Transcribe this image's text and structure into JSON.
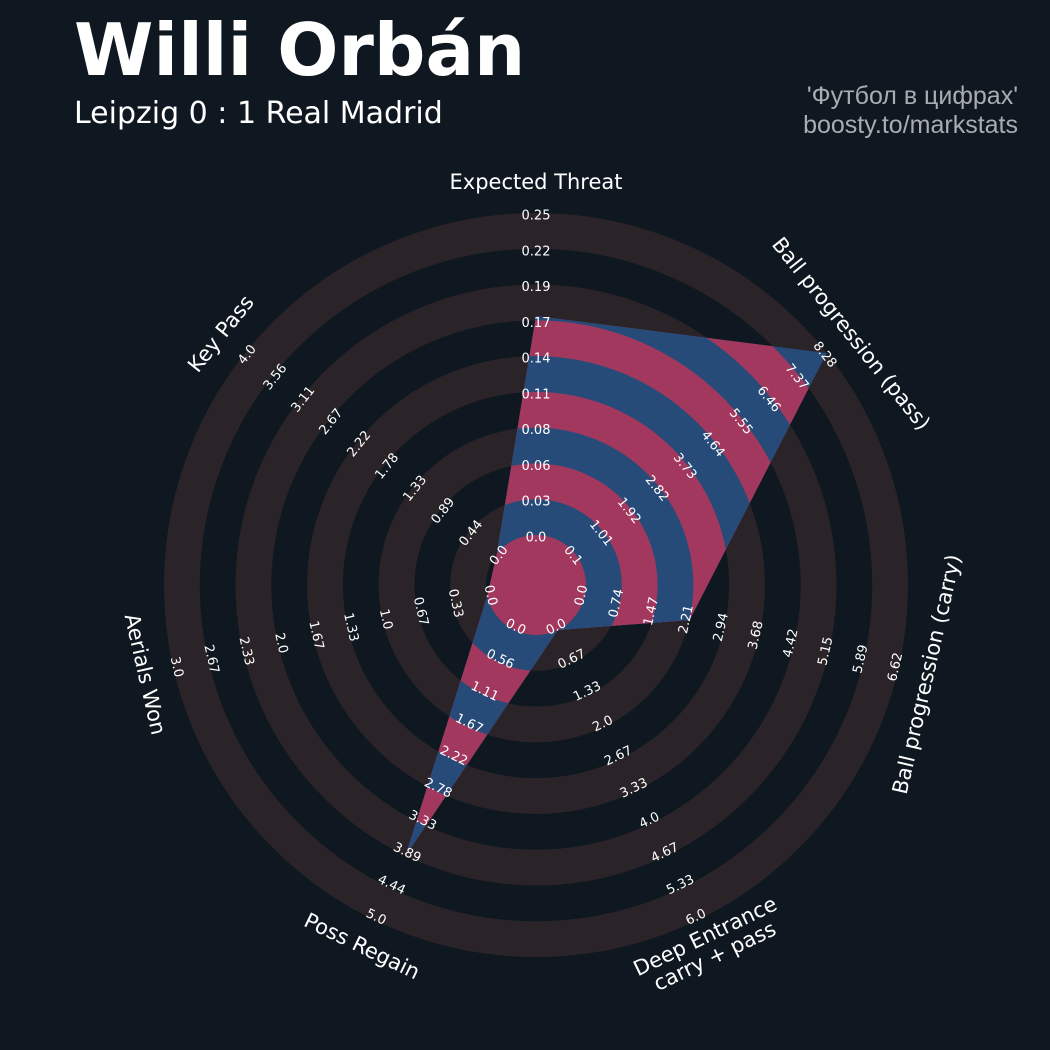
{
  "header": {
    "title": "Willi Orbán",
    "subtitle": "Leipzig 0 : 1 Real Madrid",
    "credit_line1": "'Футбол в цифрах'",
    "credit_line2": "boosty.to/markstats"
  },
  "colors": {
    "background": "#0f1820",
    "ring": "#2a2428",
    "fill_blue": "#264b78",
    "fill_red": "#a3385e",
    "text": "#ffffff"
  },
  "chart_data": {
    "type": "radar",
    "player": "Willi Orbán",
    "grid": true,
    "parameters": [
      {
        "label": "Expected Threat",
        "value": 0.17,
        "min": 0.0,
        "max": 0.25,
        "ticks": [
          "0.0",
          "0.03",
          "0.06",
          "0.08",
          "0.11",
          "0.14",
          "0.17",
          "0.19",
          "0.22",
          "0.25"
        ]
      },
      {
        "label": "Ball progression (pass)",
        "value": 8.28,
        "min": 0.1,
        "max": 8.28,
        "ticks": [
          "0.1",
          "1.01",
          "1.92",
          "2.82",
          "3.73",
          "4.64",
          "5.55",
          "6.46",
          "7.37",
          "8.28"
        ]
      },
      {
        "label": "Ball progression (carry)",
        "value": 2.21,
        "min": 0.0,
        "max": 6.62,
        "ticks": [
          "0.0",
          "0.74",
          "1.47",
          "2.21",
          "2.94",
          "3.68",
          "4.42",
          "5.15",
          "5.89",
          "6.62"
        ]
      },
      {
        "label": "Deep Entrance\ncarry + pass",
        "value": 0.0,
        "min": 0.0,
        "max": 6.0,
        "ticks": [
          "0.0",
          "0.67",
          "1.33",
          "2.0",
          "2.67",
          "3.33",
          "4.0",
          "4.67",
          "5.33",
          "6.0"
        ]
      },
      {
        "label": "Poss Regain",
        "value": 3.89,
        "min": 0.0,
        "max": 5.0,
        "ticks": [
          "0.0",
          "0.56",
          "1.11",
          "1.67",
          "2.22",
          "2.78",
          "3.33",
          "3.89",
          "4.44",
          "5.0"
        ]
      },
      {
        "label": "Aerials Won",
        "value": 0.0,
        "min": 0.0,
        "max": 3.0,
        "ticks": [
          "0.0",
          "0.33",
          "0.67",
          "1.0",
          "1.33",
          "1.67",
          "2.0",
          "2.33",
          "2.67",
          "3.0"
        ]
      },
      {
        "label": "Key Pass",
        "value": 0.0,
        "min": 0.0,
        "max": 4.0,
        "ticks": [
          "0.0",
          "0.44",
          "0.89",
          "1.33",
          "1.78",
          "2.22",
          "2.67",
          "3.11",
          "3.56",
          "4.0"
        ]
      }
    ]
  }
}
